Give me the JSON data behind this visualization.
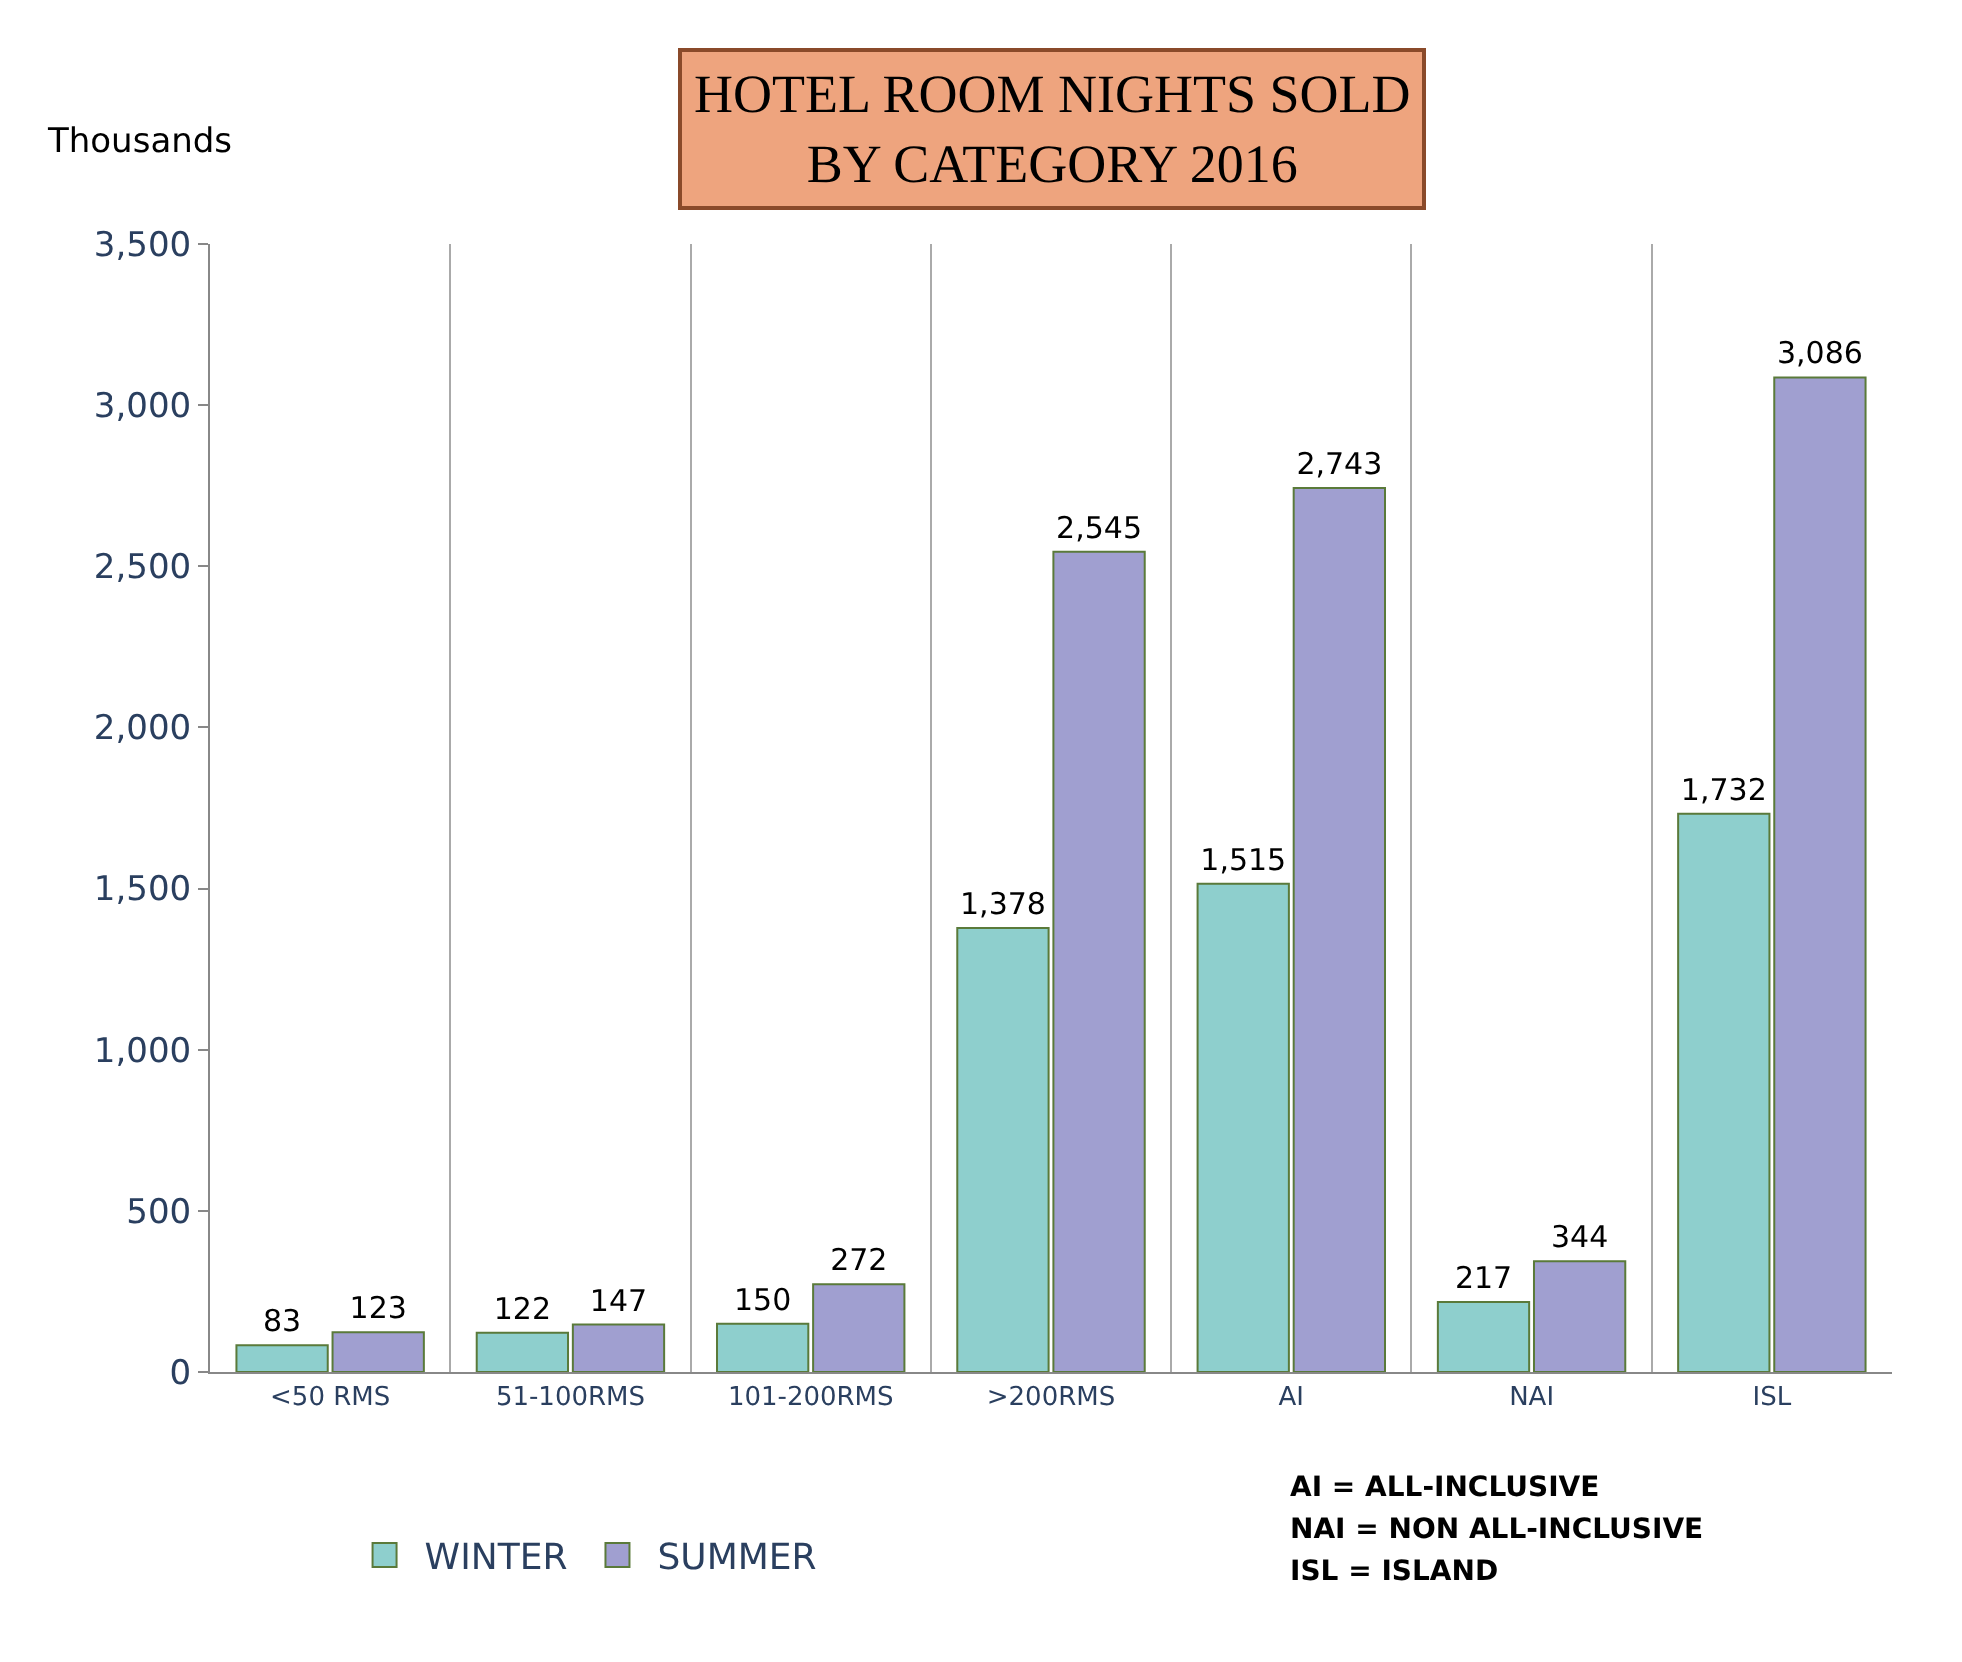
{
  "chart_data": {
    "type": "bar",
    "title": "HOTEL ROOM NIGHTS SOLD\nBY CATEGORY 2016",
    "ylabel": "Thousands",
    "categories": [
      "<50 RMS",
      "51-100RMS",
      "101-200RMS",
      ">200RMS",
      "AI",
      "NAI",
      "ISL"
    ],
    "series": [
      {
        "name": "WINTER",
        "color": "#8ecfcd",
        "values": [
          83,
          122,
          150,
          1378,
          1515,
          217,
          1732
        ],
        "value_labels": [
          "83",
          "122",
          "150",
          "1,378",
          "1,515",
          "217",
          "1,732"
        ]
      },
      {
        "name": "SUMMER",
        "color": "#a09fd0",
        "values": [
          123,
          147,
          272,
          2545,
          2743,
          344,
          3086
        ],
        "value_labels": [
          "123",
          "147",
          "272",
          "2,545",
          "2,743",
          "344",
          "3,086"
        ]
      }
    ],
    "ylim": [
      0,
      3500
    ],
    "yticks": [
      0,
      500,
      {
        "value": 1000,
        "label": "1,000"
      },
      {
        "value": 1500,
        "label": "1,500"
      },
      {
        "value": 2000,
        "label": "2,000"
      },
      {
        "value": 2500,
        "label": "2,500"
      },
      {
        "value": 3000,
        "label": "3,000"
      },
      {
        "value": 3500,
        "label": "3,500"
      }
    ],
    "grid": "x",
    "legend": "bottom",
    "annotations": [
      "AI = ALL-INCLUSIVE",
      "NAI = NON ALL-INCLUSIVE",
      "ISL = ISLAND"
    ]
  }
}
